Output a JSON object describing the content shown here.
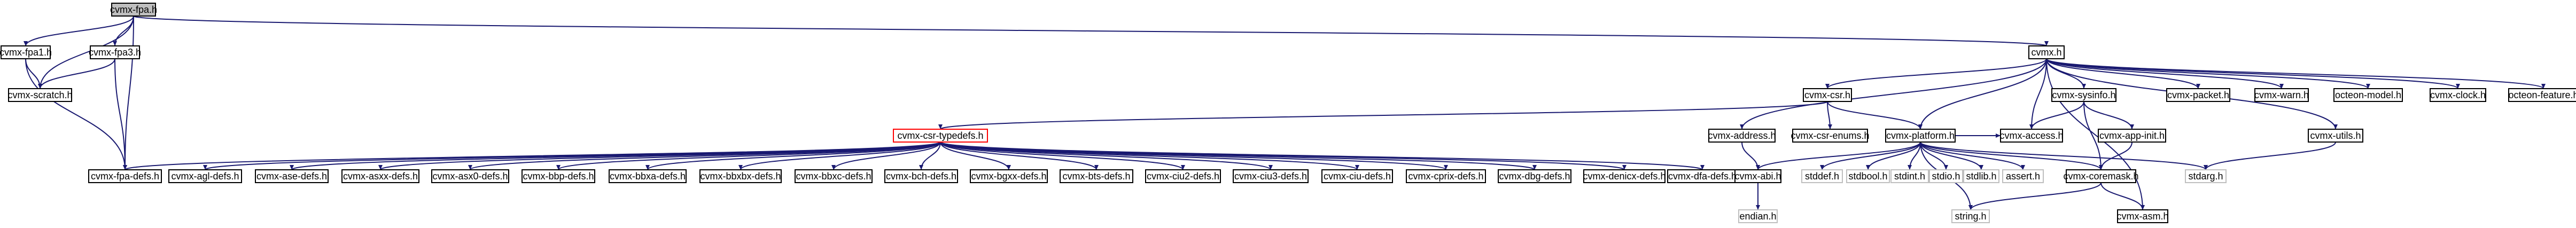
{
  "diagram": {
    "nodes": [
      {
        "id": "cvmx-fpa.h",
        "label": "cvmx-fpa.h",
        "style": "root"
      },
      {
        "id": "cvmx-fpa1.h",
        "label": "cvmx-fpa1.h",
        "style": "normal"
      },
      {
        "id": "cvmx-fpa3.h",
        "label": "cvmx-fpa3.h",
        "style": "normal"
      },
      {
        "id": "cvmx-scratch.h",
        "label": "cvmx-scratch.h",
        "style": "normal"
      },
      {
        "id": "cvmx-fpa-defs.h",
        "label": "cvmx-fpa-defs.h",
        "style": "normal"
      },
      {
        "id": "cvmx.h",
        "label": "cvmx.h",
        "style": "normal"
      },
      {
        "id": "cvmx-csr.h",
        "label": "cvmx-csr.h",
        "style": "normal"
      },
      {
        "id": "cvmx-sysinfo.h",
        "label": "cvmx-sysinfo.h",
        "style": "normal"
      },
      {
        "id": "cvmx-packet.h",
        "label": "cvmx-packet.h",
        "style": "normal"
      },
      {
        "id": "cvmx-warn.h",
        "label": "cvmx-warn.h",
        "style": "normal"
      },
      {
        "id": "octeon-model.h",
        "label": "octeon-model.h",
        "style": "normal"
      },
      {
        "id": "cvmx-clock.h",
        "label": "cvmx-clock.h",
        "style": "normal"
      },
      {
        "id": "octeon-feature.h",
        "label": "octeon-feature.h",
        "style": "normal"
      },
      {
        "id": "cvmx-csr-typedefs.h",
        "label": "cvmx-csr-typedefs.h",
        "style": "red"
      },
      {
        "id": "cvmx-address.h",
        "label": "cvmx-address.h",
        "style": "normal"
      },
      {
        "id": "cvmx-csr-enums.h",
        "label": "cvmx-csr-enums.h",
        "style": "normal"
      },
      {
        "id": "cvmx-platform.h",
        "label": "cvmx-platform.h",
        "style": "normal"
      },
      {
        "id": "cvmx-access.h",
        "label": "cvmx-access.h",
        "style": "normal"
      },
      {
        "id": "cvmx-app-init.h",
        "label": "cvmx-app-init.h",
        "style": "normal"
      },
      {
        "id": "cvmx-utils.h",
        "label": "cvmx-utils.h",
        "style": "normal"
      },
      {
        "id": "cvmx-agl-defs.h",
        "label": "cvmx-agl-defs.h",
        "style": "normal"
      },
      {
        "id": "cvmx-ase-defs.h",
        "label": "cvmx-ase-defs.h",
        "style": "normal"
      },
      {
        "id": "cvmx-asxx-defs.h",
        "label": "cvmx-asxx-defs.h",
        "style": "normal"
      },
      {
        "id": "cvmx-asx0-defs.h",
        "label": "cvmx-asx0-defs.h",
        "style": "normal"
      },
      {
        "id": "cvmx-bbp-defs.h",
        "label": "cvmx-bbp-defs.h",
        "style": "normal"
      },
      {
        "id": "cvmx-bbxa-defs.h",
        "label": "cvmx-bbxa-defs.h",
        "style": "normal"
      },
      {
        "id": "cvmx-bbxbx-defs.h",
        "label": "cvmx-bbxbx-defs.h",
        "style": "normal"
      },
      {
        "id": "cvmx-bbxc-defs.h",
        "label": "cvmx-bbxc-defs.h",
        "style": "normal"
      },
      {
        "id": "cvmx-bch-defs.h",
        "label": "cvmx-bch-defs.h",
        "style": "normal"
      },
      {
        "id": "cvmx-bgxx-defs.h",
        "label": "cvmx-bgxx-defs.h",
        "style": "normal"
      },
      {
        "id": "cvmx-bts-defs.h",
        "label": "cvmx-bts-defs.h",
        "style": "normal"
      },
      {
        "id": "cvmx-ciu2-defs.h",
        "label": "cvmx-ciu2-defs.h",
        "style": "normal"
      },
      {
        "id": "cvmx-ciu3-defs.h",
        "label": "cvmx-ciu3-defs.h",
        "style": "normal"
      },
      {
        "id": "cvmx-ciu-defs.h",
        "label": "cvmx-ciu-defs.h",
        "style": "normal"
      },
      {
        "id": "cvmx-cprix-defs.h",
        "label": "cvmx-cprix-defs.h",
        "style": "normal"
      },
      {
        "id": "cvmx-dbg-defs.h",
        "label": "cvmx-dbg-defs.h",
        "style": "normal"
      },
      {
        "id": "cvmx-denicx-defs.h",
        "label": "cvmx-denicx-defs.h",
        "style": "normal"
      },
      {
        "id": "cvmx-dfa-defs.h",
        "label": "cvmx-dfa-defs.h",
        "style": "normal"
      },
      {
        "id": "cvmx-abi.h",
        "label": "cvmx-abi.h",
        "style": "normal"
      },
      {
        "id": "stdbool.h",
        "label": "stdbool.h",
        "style": "grey"
      },
      {
        "id": "stdint.h",
        "label": "stdint.h",
        "style": "grey"
      },
      {
        "id": "stdio.h",
        "label": "stdio.h",
        "style": "grey"
      },
      {
        "id": "stdlib.h",
        "label": "stdlib.h",
        "style": "grey"
      },
      {
        "id": "assert.h",
        "label": "assert.h",
        "style": "grey"
      },
      {
        "id": "cvmx-coremask.h",
        "label": "cvmx-coremask.h",
        "style": "normal"
      },
      {
        "id": "stdarg.h",
        "label": "stdarg.h",
        "style": "grey"
      },
      {
        "id": "stddef.h",
        "label": "stddef.h",
        "style": "grey"
      },
      {
        "id": "endian.h",
        "label": "endian.h",
        "style": "grey"
      },
      {
        "id": "string.h",
        "label": "string.h",
        "style": "grey"
      },
      {
        "id": "cvmx-asm.h",
        "label": "cvmx-asm.h",
        "style": "normal"
      }
    ],
    "edges": [
      [
        "cvmx-fpa.h",
        "cvmx-fpa1.h"
      ],
      [
        "cvmx-fpa.h",
        "cvmx-fpa3.h"
      ],
      [
        "cvmx-fpa.h",
        "cvmx-scratch.h"
      ],
      [
        "cvmx-fpa.h",
        "cvmx-fpa-defs.h"
      ],
      [
        "cvmx-fpa.h",
        "cvmx.h"
      ],
      [
        "cvmx-fpa1.h",
        "cvmx-scratch.h"
      ],
      [
        "cvmx-fpa1.h",
        "cvmx-fpa-defs.h"
      ],
      [
        "cvmx-fpa3.h",
        "cvmx-scratch.h"
      ],
      [
        "cvmx-fpa3.h",
        "cvmx-fpa-defs.h"
      ],
      [
        "cvmx.h",
        "cvmx-csr.h"
      ],
      [
        "cvmx.h",
        "cvmx-sysinfo.h"
      ],
      [
        "cvmx.h",
        "cvmx-packet.h"
      ],
      [
        "cvmx.h",
        "cvmx-warn.h"
      ],
      [
        "cvmx.h",
        "octeon-model.h"
      ],
      [
        "cvmx.h",
        "cvmx-clock.h"
      ],
      [
        "cvmx.h",
        "octeon-feature.h"
      ],
      [
        "cvmx.h",
        "cvmx-address.h"
      ],
      [
        "cvmx.h",
        "cvmx-access.h"
      ],
      [
        "cvmx.h",
        "cvmx-utils.h"
      ],
      [
        "cvmx.h",
        "cvmx-platform.h"
      ],
      [
        "cvmx.h",
        "cvmx-asm.h"
      ],
      [
        "cvmx-csr.h",
        "cvmx-csr-typedefs.h"
      ],
      [
        "cvmx-csr.h",
        "cvmx-csr-enums.h"
      ],
      [
        "cvmx-csr.h",
        "cvmx-platform.h"
      ],
      [
        "cvmx-sysinfo.h",
        "cvmx-app-init.h"
      ],
      [
        "cvmx-sysinfo.h",
        "cvmx-coremask.h"
      ],
      [
        "cvmx-sysinfo.h",
        "cvmx-access.h"
      ],
      [
        "cvmx-app-init.h",
        "cvmx-coremask.h"
      ],
      [
        "cvmx-utils.h",
        "stdarg.h"
      ],
      [
        "cvmx-csr-typedefs.h",
        "cvmx-fpa-defs.h"
      ],
      [
        "cvmx-csr-typedefs.h",
        "cvmx-agl-defs.h"
      ],
      [
        "cvmx-csr-typedefs.h",
        "cvmx-ase-defs.h"
      ],
      [
        "cvmx-csr-typedefs.h",
        "cvmx-asxx-defs.h"
      ],
      [
        "cvmx-csr-typedefs.h",
        "cvmx-asx0-defs.h"
      ],
      [
        "cvmx-csr-typedefs.h",
        "cvmx-bbp-defs.h"
      ],
      [
        "cvmx-csr-typedefs.h",
        "cvmx-bbxa-defs.h"
      ],
      [
        "cvmx-csr-typedefs.h",
        "cvmx-bbxbx-defs.h"
      ],
      [
        "cvmx-csr-typedefs.h",
        "cvmx-bbxc-defs.h"
      ],
      [
        "cvmx-csr-typedefs.h",
        "cvmx-bch-defs.h"
      ],
      [
        "cvmx-csr-typedefs.h",
        "cvmx-bgxx-defs.h"
      ],
      [
        "cvmx-csr-typedefs.h",
        "cvmx-bts-defs.h"
      ],
      [
        "cvmx-csr-typedefs.h",
        "cvmx-ciu2-defs.h"
      ],
      [
        "cvmx-csr-typedefs.h",
        "cvmx-ciu3-defs.h"
      ],
      [
        "cvmx-csr-typedefs.h",
        "cvmx-ciu-defs.h"
      ],
      [
        "cvmx-csr-typedefs.h",
        "cvmx-cprix-defs.h"
      ],
      [
        "cvmx-csr-typedefs.h",
        "cvmx-dbg-defs.h"
      ],
      [
        "cvmx-csr-typedefs.h",
        "cvmx-denicx-defs.h"
      ],
      [
        "cvmx-csr-typedefs.h",
        "cvmx-dfa-defs.h"
      ],
      [
        "cvmx-address.h",
        "cvmx-abi.h"
      ],
      [
        "cvmx-platform.h",
        "cvmx-abi.h"
      ],
      [
        "cvmx-platform.h",
        "stddef.h"
      ],
      [
        "cvmx-platform.h",
        "stdbool.h"
      ],
      [
        "cvmx-platform.h",
        "stdint.h"
      ],
      [
        "cvmx-platform.h",
        "stdio.h"
      ],
      [
        "cvmx-platform.h",
        "stdlib.h"
      ],
      [
        "cvmx-platform.h",
        "assert.h"
      ],
      [
        "cvmx-platform.h",
        "string.h"
      ],
      [
        "cvmx-platform.h",
        "stdarg.h"
      ],
      [
        "cvmx-platform.h",
        "cvmx-access.h"
      ],
      [
        "cvmx-platform.h",
        "cvmx-coremask.h"
      ],
      [
        "cvmx-abi.h",
        "endian.h"
      ],
      [
        "cvmx-coremask.h",
        "cvmx-asm.h"
      ],
      [
        "cvmx-coremask.h",
        "string.h"
      ]
    ]
  }
}
